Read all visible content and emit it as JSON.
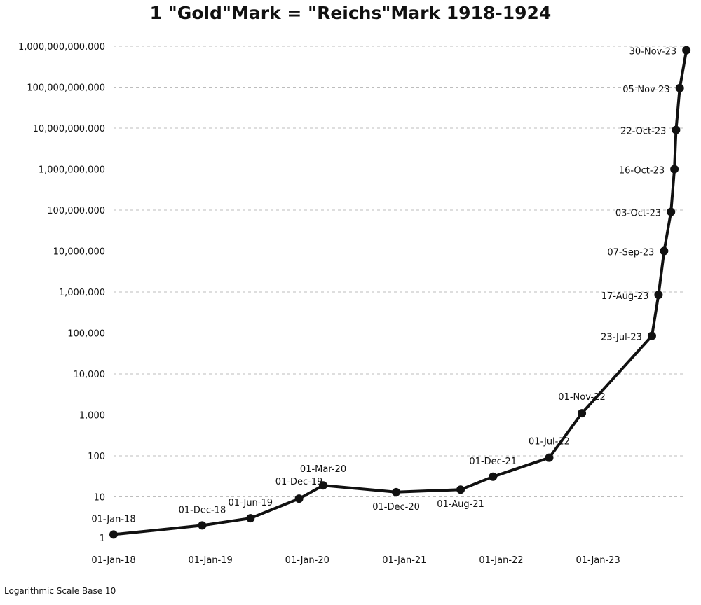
{
  "chart_data": {
    "type": "line",
    "title": "1 \"Gold\"Mark = \"Reichs\"Mark 1918-1924",
    "yscale": "log10",
    "ylim": [
      1,
      1000000000000
    ],
    "xlim": [
      "1918-01-01",
      "1923-12-15"
    ],
    "grid": {
      "horizontal": true,
      "style": "dashed"
    },
    "legend": "none",
    "x_ticks": [
      "01-Jan-18",
      "01-Jan-19",
      "01-Jan-20",
      "01-Jan-21",
      "01-Jan-22",
      "01-Jan-23"
    ],
    "y_ticks": [
      "1",
      "10",
      "100",
      "1,000",
      "10,000",
      "100,000",
      "1,000,000",
      "10,000,000",
      "100,000,000",
      "1,000,000,000",
      "10,000,000,000",
      "100,000,000,000",
      "1,000,000,000,000"
    ],
    "series": [
      {
        "color": "#111111",
        "points": [
          {
            "date": "1918-01-01",
            "label": "01-Jan-18",
            "value": 1.2
          },
          {
            "date": "1918-12-01",
            "label": "01-Dec-18",
            "value": 2
          },
          {
            "date": "1919-06-01",
            "label": "01-Jun-19",
            "value": 3
          },
          {
            "date": "1919-12-01",
            "label": "01-Dec-19",
            "value": 9
          },
          {
            "date": "1920-03-01",
            "label": "01-Mar-20",
            "value": 19
          },
          {
            "date": "1920-12-01",
            "label": "01-Dec-20",
            "value": 13
          },
          {
            "date": "1921-08-01",
            "label": "01-Aug-21",
            "value": 15
          },
          {
            "date": "1921-12-01",
            "label": "01-Dec-21",
            "value": 31
          },
          {
            "date": "1922-07-01",
            "label": "01-Jul-22",
            "value": 90
          },
          {
            "date": "1922-11-01",
            "label": "01-Nov-22",
            "value": 1100
          },
          {
            "date": "1923-07-23",
            "label": "23-Jul-23",
            "value": 85000
          },
          {
            "date": "1923-08-17",
            "label": "17-Aug-23",
            "value": 850000
          },
          {
            "date": "1923-09-07",
            "label": "07-Sep-23",
            "value": 10000000
          },
          {
            "date": "1923-10-03",
            "label": "03-Oct-23",
            "value": 90000000
          },
          {
            "date": "1923-10-16",
            "label": "16-Oct-23",
            "value": 1000000000
          },
          {
            "date": "1923-10-22",
            "label": "22-Oct-23",
            "value": 9000000000
          },
          {
            "date": "1923-11-05",
            "label": "05-Nov-23",
            "value": 95000000000
          },
          {
            "date": "1923-11-30",
            "label": "30-Nov-23",
            "value": 800000000000
          }
        ]
      }
    ]
  },
  "footnote": "Logarithmic Scale Base 10"
}
